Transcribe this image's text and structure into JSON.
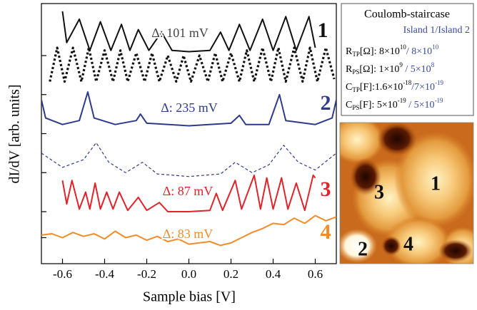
{
  "chart_data": {
    "type": "line",
    "x_label": "Sample bias [V]",
    "y_label": "dI/dV [arb. units]",
    "xlim": [
      -0.7,
      0.7
    ],
    "xticks": [
      -0.6,
      -0.4,
      -0.2,
      {
        "value": 0,
        "label": "0.0"
      },
      0.2,
      0.4,
      0.6
    ],
    "ylim": [
      0,
      10
    ],
    "yticks": [
      1,
      2,
      3.5,
      5,
      6.5,
      8
    ],
    "series": [
      {
        "color": "#111111",
        "style": "solid",
        "x": [
          -0.6,
          -0.58,
          -0.52,
          -0.47,
          -0.42,
          -0.37,
          -0.32,
          -0.28,
          -0.24,
          -0.19,
          -0.13,
          -0.08,
          0.0,
          0.1,
          0.15,
          0.19,
          0.24,
          0.29,
          0.35,
          0.4,
          0.46,
          0.51,
          0.57,
          0.6
        ],
        "values": [
          9.7,
          8.5,
          9.4,
          8.2,
          9.3,
          8.2,
          9.2,
          8.2,
          9.0,
          8.2,
          8.9,
          8.2,
          8.15,
          8.2,
          8.9,
          8.2,
          9.2,
          8.2,
          9.4,
          8.2,
          9.5,
          8.2,
          9.5,
          8.3
        ]
      },
      {
        "color": "#111111",
        "style": "dotted",
        "x": [
          -0.66,
          -0.625,
          -0.59,
          -0.55,
          -0.51,
          -0.475,
          -0.44,
          -0.4,
          -0.36,
          -0.325,
          -0.29,
          -0.25,
          -0.21,
          -0.175,
          -0.14,
          -0.1,
          -0.06,
          -0.025,
          0.01,
          0.05,
          0.09,
          0.125,
          0.16,
          0.2,
          0.24,
          0.275,
          0.31,
          0.35,
          0.39,
          0.425,
          0.46,
          0.5,
          0.54,
          0.575,
          0.61,
          0.65,
          0.69
        ],
        "values": [
          7.0,
          8.3,
          7.0,
          8.3,
          7.0,
          8.3,
          7.0,
          8.2,
          7.0,
          8.2,
          7.0,
          8.1,
          7.0,
          8.1,
          7.0,
          8.0,
          7.0,
          8.0,
          7.0,
          8.0,
          7.0,
          8.1,
          7.0,
          8.1,
          7.0,
          8.2,
          7.0,
          8.3,
          7.0,
          8.3,
          7.0,
          8.3,
          7.0,
          8.3,
          7.0,
          8.3,
          7.1
        ]
      },
      {
        "color": "#2e3a8c",
        "style": "solid",
        "x": [
          -0.7,
          -0.68,
          -0.6,
          -0.52,
          -0.48,
          -0.45,
          -0.35,
          -0.25,
          -0.23,
          -0.2,
          0.0,
          0.2,
          0.24,
          0.27,
          0.38,
          0.43,
          0.46,
          0.6,
          0.68,
          0.7
        ],
        "values": [
          6.3,
          5.6,
          5.35,
          5.5,
          6.6,
          5.6,
          5.35,
          5.5,
          5.75,
          5.4,
          5.3,
          5.4,
          5.7,
          5.35,
          5.35,
          6.5,
          5.5,
          5.35,
          5.6,
          6.3
        ]
      },
      {
        "color": "#2e3a8c",
        "style": "dashed",
        "x": [
          -0.7,
          -0.6,
          -0.5,
          -0.44,
          -0.38,
          -0.3,
          -0.22,
          -0.15,
          0.0,
          0.15,
          0.22,
          0.3,
          0.38,
          0.45,
          0.52,
          0.6,
          0.7
        ],
        "values": [
          4.25,
          3.7,
          4.0,
          4.65,
          3.9,
          3.5,
          3.9,
          3.45,
          3.35,
          3.45,
          3.9,
          3.5,
          3.8,
          4.55,
          3.9,
          3.6,
          4.25
        ]
      },
      {
        "color": "#e0242b",
        "style": "solid",
        "x": [
          -0.6,
          -0.58,
          -0.555,
          -0.52,
          -0.49,
          -0.47,
          -0.445,
          -0.42,
          -0.39,
          -0.36,
          -0.33,
          -0.29,
          -0.24,
          -0.2,
          -0.14,
          -0.1,
          0.0,
          0.1,
          0.13,
          0.16,
          0.22,
          0.25,
          0.31,
          0.34,
          0.37,
          0.4,
          0.44,
          0.47,
          0.51,
          0.55,
          0.59,
          0.6
        ],
        "values": [
          3.2,
          2.3,
          3.2,
          2.1,
          2.75,
          2.1,
          3.1,
          2.1,
          2.75,
          2.1,
          2.75,
          2.05,
          2.55,
          2.05,
          2.35,
          2.0,
          2.0,
          2.05,
          2.7,
          2.05,
          3.2,
          2.1,
          3.4,
          2.1,
          3.3,
          2.1,
          3.3,
          2.1,
          3.1,
          2.05,
          3.4,
          3.3
        ]
      },
      {
        "color": "#f28c28",
        "style": "solid",
        "x": [
          -0.7,
          -0.65,
          -0.6,
          -0.55,
          -0.5,
          -0.45,
          -0.4,
          -0.35,
          -0.3,
          -0.25,
          -0.2,
          -0.15,
          -0.1,
          -0.05,
          0.0,
          0.05,
          0.1,
          0.15,
          0.2,
          0.25,
          0.3,
          0.35,
          0.4,
          0.45,
          0.5,
          0.55,
          0.6,
          0.65,
          0.7
        ],
        "values": [
          1.1,
          1.15,
          1.0,
          1.2,
          1.05,
          1.15,
          0.95,
          1.25,
          1.0,
          1.1,
          0.9,
          1.05,
          0.85,
          0.95,
          0.75,
          0.8,
          0.85,
          0.7,
          0.8,
          1.0,
          1.2,
          1.35,
          1.55,
          1.5,
          1.75,
          1.55,
          1.85,
          1.65,
          1.8
        ]
      }
    ],
    "annotations": [
      {
        "text": "1",
        "color": "#111111"
      },
      {
        "text": "Δ: 101 mV",
        "color": "#444444"
      },
      {
        "text": "2",
        "color": "#2e3a8c"
      },
      {
        "text": "Δ: 235 mV",
        "color": "#2e3a8c"
      },
      {
        "text": "3",
        "color": "#e0242b"
      },
      {
        "text": "Δ: 87 mV",
        "color": "#e0242b"
      },
      {
        "text": "4",
        "color": "#f28c28"
      },
      {
        "text": "Δ: 83 mV",
        "color": "#f28c28"
      }
    ]
  },
  "inset_table": {
    "title": "Coulomb-staircase",
    "island1": "Island 1",
    "island2": "/Island 2",
    "rows": [
      {
        "symbol": "R",
        "sub": "TP",
        "unit": "[Ω]: ",
        "v1": "8×10",
        "e1": "10",
        "sep": "/ ",
        "v2": " 8×10",
        "e2": "10"
      },
      {
        "symbol": "R",
        "sub": "PS",
        "unit": "[Ω]: ",
        "v1": "1×10",
        "e1": "9",
        "sep": "  /  ",
        "v2": "5×10",
        "e2": "8"
      },
      {
        "symbol": "C",
        "sub": "TP",
        "unit": "[F]:",
        "v1": "1.6×10",
        "e1": "-18",
        "sep": "/",
        "v2": "7×10",
        "e2": "-19"
      },
      {
        "symbol": "C",
        "sub": "PS",
        "unit": "[F]: ",
        "v1": "5×10",
        "e1": "-19",
        "sep": " / ",
        "v2": "5×10",
        "e2": "-19"
      }
    ]
  },
  "stm_image": {
    "labels": [
      "1",
      "2",
      "3",
      "4"
    ]
  }
}
